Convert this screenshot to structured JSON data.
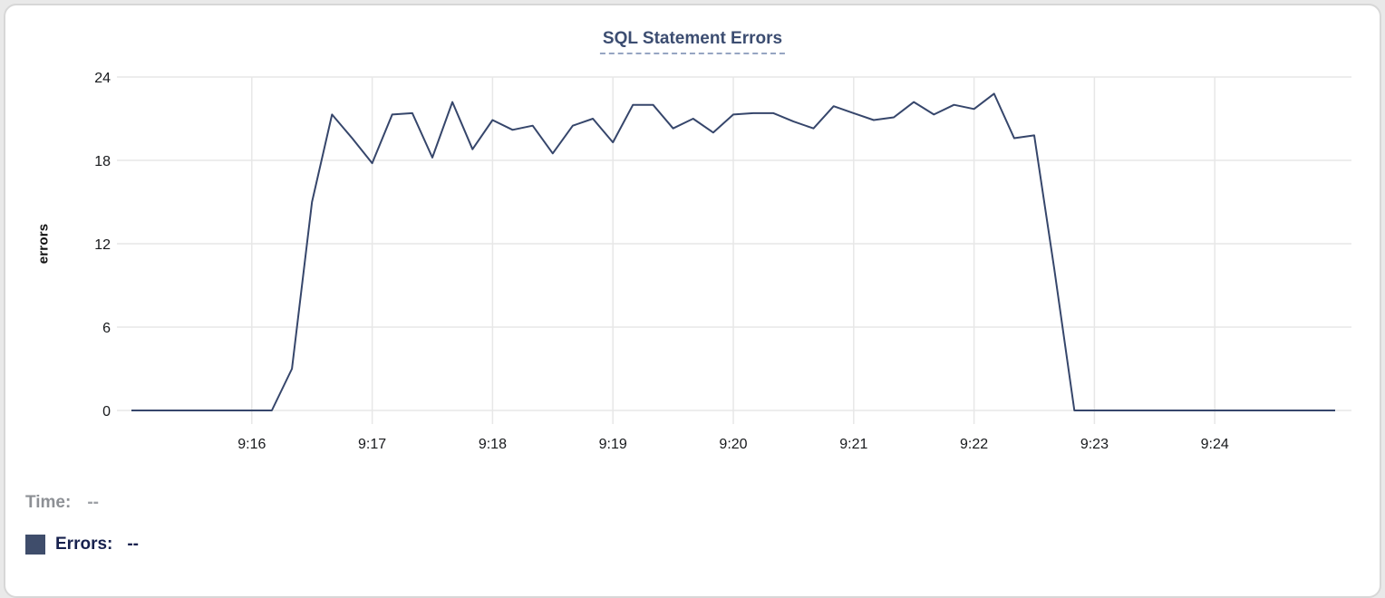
{
  "chart_data": {
    "type": "line",
    "title": "SQL Statement Errors",
    "xlabel": "",
    "ylabel": "errors",
    "ylim": [
      0,
      24
    ],
    "yticks": [
      0,
      6,
      12,
      18,
      24
    ],
    "xtick_labels": [
      "9:16",
      "9:17",
      "9:18",
      "9:19",
      "9:20",
      "9:21",
      "9:22",
      "9:23",
      "9:24"
    ],
    "grid": true,
    "legend_position": "bottom-left",
    "interval_seconds": 10,
    "line_color": "#36466b",
    "grid_color": "#e7e7e7",
    "series": [
      {
        "name": "Errors",
        "times": [
          "9:15:00",
          "9:15:10",
          "9:15:20",
          "9:15:30",
          "9:15:40",
          "9:15:50",
          "9:16:00",
          "9:16:10",
          "9:16:20",
          "9:16:30",
          "9:16:40",
          "9:16:50",
          "9:17:00",
          "9:17:10",
          "9:17:20",
          "9:17:30",
          "9:17:40",
          "9:17:50",
          "9:18:00",
          "9:18:10",
          "9:18:20",
          "9:18:30",
          "9:18:40",
          "9:18:50",
          "9:19:00",
          "9:19:10",
          "9:19:20",
          "9:19:30",
          "9:19:40",
          "9:19:50",
          "9:20:00",
          "9:20:10",
          "9:20:20",
          "9:20:30",
          "9:20:40",
          "9:20:50",
          "9:21:00",
          "9:21:10",
          "9:21:20",
          "9:21:30",
          "9:21:40",
          "9:21:50",
          "9:22:00",
          "9:22:10",
          "9:22:20",
          "9:22:30",
          "9:22:40",
          "9:22:50",
          "9:23:00",
          "9:23:10",
          "9:23:20",
          "9:23:30",
          "9:23:40",
          "9:23:50",
          "9:24:00",
          "9:24:10",
          "9:24:20",
          "9:24:30",
          "9:24:40",
          "9:24:50",
          "9:25:00"
        ],
        "values": [
          0,
          0,
          0,
          0,
          0,
          0,
          0,
          0,
          3,
          15,
          21.3,
          19.6,
          17.8,
          21.3,
          21.4,
          18.2,
          22.2,
          18.8,
          20.9,
          20.2,
          20.5,
          18.5,
          20.5,
          21,
          19.3,
          22,
          22,
          20.3,
          21,
          20,
          21.3,
          21.4,
          21.4,
          20.8,
          20.3,
          21.9,
          21.4,
          20.9,
          21.1,
          22.2,
          21.3,
          22,
          21.7,
          22.8,
          19.6,
          19.8,
          10.2,
          0,
          0,
          0,
          0,
          0,
          0,
          0,
          0,
          0,
          0,
          0,
          0,
          0,
          0
        ]
      }
    ]
  },
  "footer": {
    "time_label": "Time:",
    "time_value": "--",
    "errors_label": "Errors:",
    "errors_value": "--",
    "swatch_color": "#3f4d6b"
  }
}
